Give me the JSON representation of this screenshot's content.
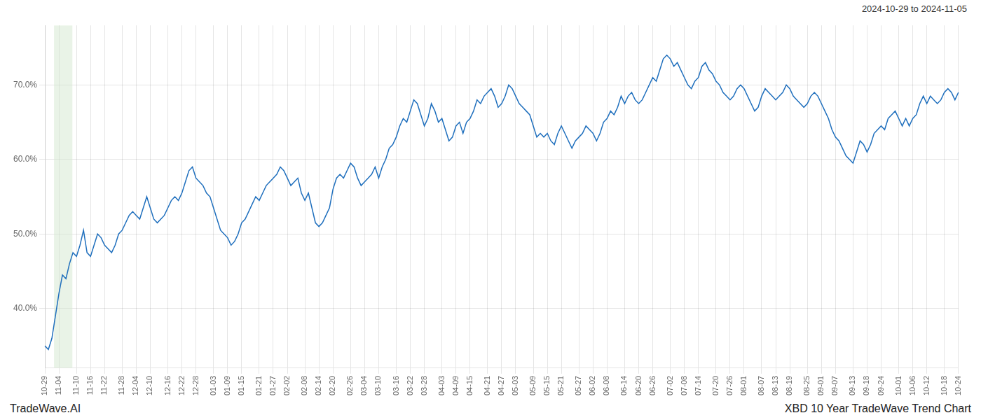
{
  "chart_data": {
    "type": "line",
    "title": "XBD 10 Year TradeWave Trend Chart",
    "subtitle": "2024-10-29 to 2024-11-05",
    "annotations": [
      "TradeWave.AI"
    ],
    "color": "#1f6fbd",
    "grid": true,
    "ylim": [
      32.0,
      78.0
    ],
    "yticks": [
      {
        "value": 40.0,
        "label": "40.0%"
      },
      {
        "value": 50.0,
        "label": "50.0%"
      },
      {
        "value": 60.0,
        "label": "60.0%"
      },
      {
        "value": 70.0,
        "label": "70.0%"
      }
    ],
    "highlight": {
      "x": [
        2.61,
        7.83
      ],
      "color": "#d4e8d0"
    },
    "categories": [
      "10-29",
      null,
      null,
      null,
      "11-04",
      null,
      null,
      null,
      null,
      "11-10",
      null,
      null,
      null,
      "11-16",
      null,
      null,
      null,
      "11-22",
      null,
      null,
      null,
      null,
      "11-28",
      null,
      null,
      null,
      "12-04",
      null,
      null,
      null,
      "12-10",
      null,
      null,
      null,
      null,
      "12-16",
      null,
      null,
      null,
      "12-22",
      null,
      null,
      null,
      "12-28",
      null,
      null,
      null,
      null,
      "01-03",
      null,
      null,
      null,
      "01-09",
      null,
      null,
      null,
      "01-15",
      null,
      null,
      null,
      null,
      "01-21",
      null,
      null,
      null,
      "01-27",
      null,
      null,
      null,
      "02-02",
      null,
      null,
      null,
      null,
      "02-08",
      null,
      null,
      null,
      "02-14",
      null,
      null,
      null,
      "02-20",
      null,
      null,
      null,
      null,
      "02-26",
      null,
      null,
      null,
      "03-04",
      null,
      null,
      null,
      "03-10",
      null,
      null,
      null,
      null,
      "03-16",
      null,
      null,
      null,
      "03-22",
      null,
      null,
      null,
      "03-28",
      null,
      null,
      null,
      null,
      "04-03",
      null,
      null,
      null,
      "04-09",
      null,
      null,
      null,
      "04-15",
      null,
      null,
      null,
      null,
      "04-21",
      null,
      null,
      null,
      "04-27",
      null,
      null,
      null,
      "05-03",
      null,
      null,
      null,
      null,
      "05-09",
      null,
      null,
      null,
      "05-15",
      null,
      null,
      null,
      "05-21",
      null,
      null,
      null,
      null,
      "05-27",
      null,
      null,
      null,
      "06-02",
      null,
      null,
      null,
      "06-08",
      null,
      null,
      null,
      null,
      "06-14",
      null,
      null,
      null,
      "06-20",
      null,
      null,
      null,
      "06-26",
      null,
      null,
      null,
      null,
      "07-02",
      null,
      null,
      null,
      "07-08",
      null,
      null,
      null,
      "07-14",
      null,
      null,
      null,
      null,
      "07-20",
      null,
      null,
      null,
      "07-26",
      null,
      null,
      null,
      "08-01",
      null,
      null,
      null,
      null,
      "08-07",
      null,
      null,
      null,
      "08-13",
      null,
      null,
      null,
      "08-19",
      null,
      null,
      null,
      null,
      "08-25",
      null,
      null,
      null,
      "09-01",
      null,
      null,
      null,
      "09-07",
      null,
      null,
      null,
      null,
      "09-13",
      null,
      null,
      null,
      "09-18",
      null,
      null,
      null,
      "09-24",
      null,
      null,
      null,
      null,
      "10-01",
      null,
      null,
      null,
      "10-06",
      null,
      null,
      null,
      "10-12",
      null,
      null,
      null,
      null,
      "10-18",
      null,
      null,
      null,
      "10-24"
    ],
    "values": [
      35.0,
      34.5,
      36.0,
      39.0,
      42.0,
      44.5,
      44.0,
      46.0,
      47.5,
      47.0,
      48.5,
      50.5,
      47.5,
      47.0,
      48.5,
      50.0,
      49.5,
      48.5,
      48.0,
      47.5,
      48.5,
      50.0,
      50.5,
      51.5,
      52.5,
      53.0,
      52.5,
      52.0,
      53.5,
      55.0,
      53.5,
      52.0,
      51.5,
      52.0,
      52.5,
      53.5,
      54.5,
      55.0,
      54.5,
      55.5,
      57.0,
      58.5,
      59.0,
      57.5,
      57.0,
      56.5,
      55.5,
      55.0,
      53.5,
      52.0,
      50.5,
      50.0,
      49.5,
      48.5,
      49.0,
      50.0,
      51.5,
      52.0,
      53.0,
      54.0,
      55.0,
      54.5,
      55.5,
      56.5,
      57.0,
      57.5,
      58.0,
      59.0,
      58.5,
      57.5,
      56.5,
      57.0,
      57.5,
      55.5,
      54.5,
      55.5,
      53.5,
      51.5,
      51.0,
      51.5,
      52.5,
      53.5,
      56.0,
      57.5,
      58.0,
      57.5,
      58.5,
      59.5,
      59.0,
      57.5,
      56.5,
      57.0,
      57.5,
      58.0,
      59.0,
      57.5,
      59.0,
      60.0,
      61.5,
      62.0,
      63.0,
      64.5,
      65.5,
      65.0,
      66.5,
      68.0,
      67.5,
      66.0,
      64.5,
      65.5,
      67.5,
      66.5,
      65.0,
      65.5,
      64.0,
      62.5,
      63.0,
      64.5,
      65.0,
      63.5,
      65.0,
      65.5,
      66.5,
      68.0,
      67.5,
      68.5,
      69.0,
      69.5,
      68.5,
      67.0,
      67.5,
      68.5,
      70.0,
      69.5,
      68.5,
      67.5,
      67.0,
      66.5,
      66.0,
      64.5,
      63.0,
      63.5,
      63.0,
      63.5,
      62.5,
      62.0,
      63.5,
      64.5,
      63.5,
      62.5,
      61.5,
      62.5,
      63.0,
      63.5,
      64.5,
      64.0,
      63.5,
      62.5,
      63.5,
      65.0,
      65.5,
      66.5,
      66.0,
      67.0,
      68.5,
      67.5,
      68.5,
      69.0,
      68.0,
      67.5,
      68.0,
      69.0,
      70.0,
      71.0,
      70.5,
      72.0,
      73.5,
      74.0,
      73.5,
      72.5,
      73.0,
      72.0,
      71.0,
      70.0,
      69.5,
      70.5,
      71.0,
      72.5,
      73.0,
      72.0,
      71.5,
      70.5,
      70.0,
      69.0,
      68.5,
      68.0,
      68.5,
      69.5,
      70.0,
      69.5,
      68.5,
      67.5,
      66.5,
      67.0,
      68.5,
      69.5,
      69.0,
      68.5,
      68.0,
      68.5,
      69.0,
      70.0,
      69.5,
      68.5,
      68.0,
      67.5,
      67.0,
      67.5,
      68.5,
      69.0,
      68.5,
      67.5,
      66.5,
      65.5,
      64.0,
      63.0,
      62.5,
      61.5,
      60.5,
      60.0,
      59.5,
      61.0,
      62.5,
      62.0,
      61.0,
      62.0,
      63.5,
      64.0,
      64.5,
      64.0,
      65.5,
      66.0,
      66.5,
      65.5,
      64.5,
      65.5,
      64.5,
      65.5,
      66.0,
      67.5,
      68.5,
      67.5,
      68.5,
      68.0,
      67.5,
      68.0,
      69.0,
      69.5,
      69.0,
      68.0,
      69.0
    ]
  }
}
